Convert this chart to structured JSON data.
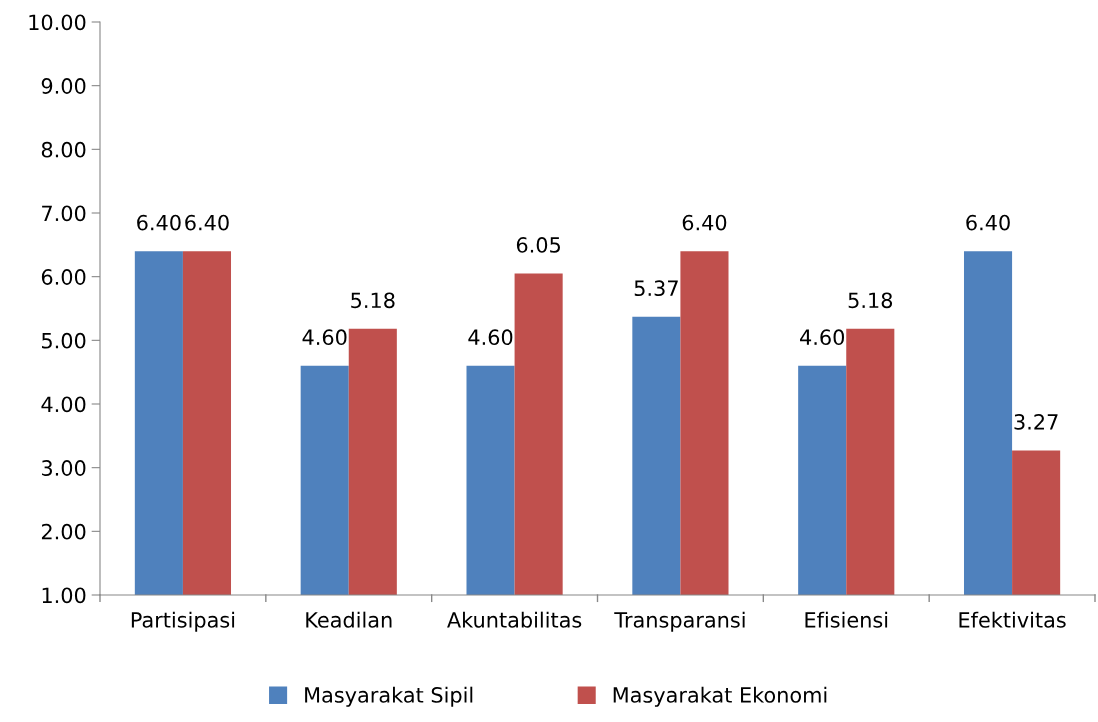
{
  "chart_data": {
    "type": "bar",
    "categories": [
      "Partisipasi",
      "Keadilan",
      "Akuntabilitas",
      "Transparansi",
      "Efisiensi",
      "Efektivitas"
    ],
    "series": [
      {
        "name": "Masyarakat Sipil",
        "color": "#4f81bd",
        "values": [
          6.4,
          4.6,
          4.6,
          5.37,
          4.6,
          6.4
        ],
        "value_labels": [
          "6.40",
          "4.60",
          "4.60",
          "5.37",
          "4.60",
          "6.40"
        ]
      },
      {
        "name": "Masyarakat Ekonomi",
        "color": "#c0504d",
        "values": [
          6.4,
          5.18,
          6.05,
          6.4,
          5.18,
          3.27
        ],
        "value_labels": [
          "6.40",
          "5.18",
          "6.05",
          "6.40",
          "5.18",
          "3.27"
        ]
      }
    ],
    "ylim": [
      1,
      10
    ],
    "yticks": [
      {
        "value": 1,
        "label": "1.00"
      },
      {
        "value": 2,
        "label": "2.00"
      },
      {
        "value": 3,
        "label": "3.00"
      },
      {
        "value": 4,
        "label": "4.00"
      },
      {
        "value": 5,
        "label": "5.00"
      },
      {
        "value": 6,
        "label": "6.00"
      },
      {
        "value": 7,
        "label": "7.00"
      },
      {
        "value": 8,
        "label": "8.00"
      },
      {
        "value": 9,
        "label": "9.00"
      },
      {
        "value": 10,
        "label": "10.00"
      }
    ],
    "grid": false,
    "legend": "bottom"
  }
}
